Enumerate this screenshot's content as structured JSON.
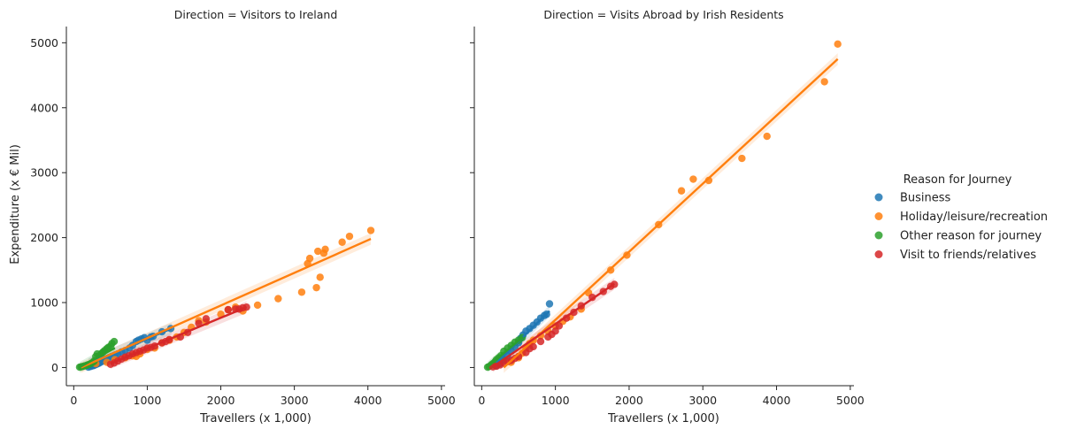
{
  "chart_data": {
    "type": "scatter",
    "ylabel": "Expenditure (x € Mil)",
    "legend": {
      "title": "Reason for Journey",
      "placement": "right",
      "entries": [
        {
          "name": "Business",
          "color": "#1f77b4"
        },
        {
          "name": "Holiday/leisure/recreation",
          "color": "#ff7f0e"
        },
        {
          "name": "Other reason for journey",
          "color": "#2ca02c"
        },
        {
          "name": "Visit to friends/relatives",
          "color": "#d62728"
        }
      ]
    },
    "xlim": [
      -100,
      5050
    ],
    "ylim": [
      -280,
      5250
    ],
    "xticks": [
      0,
      1000,
      2000,
      3000,
      4000,
      5000
    ],
    "yticks": [
      0,
      1000,
      2000,
      3000,
      4000,
      5000
    ],
    "grid": false,
    "panels": [
      {
        "title": "Direction = Visitors to Ireland",
        "xlabel": "Travellers (x 1,000)",
        "series": [
          {
            "name": "Business",
            "color": "#1f77b4",
            "x": [
              200,
              230,
              250,
              270,
              290,
              310,
              330,
              350,
              380,
              400,
              420,
              450,
              480,
              520,
              560,
              600,
              650,
              700,
              760,
              800,
              850,
              880,
              920,
              960,
              1000,
              1050,
              1080,
              1200,
              1320
            ],
            "y": [
              5,
              15,
              25,
              30,
              40,
              50,
              60,
              70,
              90,
              100,
              110,
              130,
              150,
              170,
              190,
              210,
              240,
              260,
              300,
              340,
              400,
              420,
              440,
              460,
              420,
              470,
              480,
              550,
              600
            ],
            "fit": [
              [
                200,
                60
              ],
              [
                1330,
                600
              ]
            ]
          },
          {
            "name": "Holiday/leisure/recreation",
            "color": "#ff7f0e",
            "x": [
              300,
              450,
              560,
              700,
              800,
              850,
              900,
              1000,
              1100,
              1200,
              1300,
              1400,
              1500,
              1600,
              1700,
              1800,
              2000,
              2100,
              2200,
              2300,
              2500,
              2780,
              3100,
              3180,
              3210,
              3300,
              3320,
              3350,
              3400,
              3420,
              3650,
              3750,
              4040
            ],
            "y": [
              60,
              80,
              120,
              150,
              180,
              170,
              210,
              280,
              300,
              380,
              420,
              470,
              540,
              620,
              720,
              700,
              820,
              890,
              930,
              870,
              960,
              1060,
              1160,
              1600,
              1680,
              1230,
              1790,
              1390,
              1760,
              1820,
              1930,
              2020,
              2110
            ],
            "fit": [
              [
                100,
                0
              ],
              [
                4040,
                1980
              ]
            ]
          },
          {
            "name": "Other reason for journey",
            "color": "#2ca02c",
            "x": [
              80,
              100,
              120,
              150,
              180,
              200,
              230,
              260,
              280,
              300,
              320,
              350,
              380,
              400,
              420,
              450,
              470,
              500,
              520,
              550
            ],
            "y": [
              5,
              10,
              15,
              25,
              35,
              45,
              60,
              80,
              100,
              170,
              210,
              180,
              220,
              240,
              260,
              290,
              310,
              330,
              370,
              400
            ],
            "fit": [
              [
                80,
                5
              ],
              [
                560,
                300
              ]
            ]
          },
          {
            "name": "Visit to friends/relatives",
            "color": "#d62728",
            "x": [
              500,
              550,
              600,
              650,
              700,
              750,
              800,
              850,
              900,
              950,
              1000,
              1050,
              1100,
              1200,
              1250,
              1300,
              1450,
              1550,
              1700,
              1800,
              2100,
              2200,
              2250,
              2300,
              2350
            ],
            "y": [
              50,
              70,
              100,
              130,
              160,
              180,
              210,
              230,
              250,
              270,
              300,
              310,
              330,
              380,
              400,
              430,
              470,
              540,
              680,
              750,
              890,
              900,
              900,
              920,
              930
            ],
            "fit": [
              [
                500,
                60
              ],
              [
                2350,
                930
              ]
            ]
          }
        ]
      },
      {
        "title": "Direction = Visits Abroad by Irish Residents",
        "xlabel": "Travellers (x 1,000)",
        "series": [
          {
            "name": "Business",
            "color": "#1f77b4",
            "x": [
              200,
              250,
              300,
              350,
              400,
              450,
              500,
              530,
              560,
              600,
              650,
              700,
              750,
              800,
              850,
              880,
              920
            ],
            "y": [
              30,
              60,
              120,
              180,
              250,
              320,
              380,
              450,
              500,
              560,
              600,
              650,
              700,
              760,
              800,
              820,
              980
            ],
            "fit": [
              [
                200,
                70
              ],
              [
                920,
                870
              ]
            ]
          },
          {
            "name": "Holiday/leisure/recreation",
            "color": "#ff7f0e",
            "x": [
              400,
              500,
              550,
              600,
              650,
              700,
              800,
              900,
              1000,
              1100,
              1200,
              1350,
              1450,
              1750,
              1970,
              2400,
              2710,
              2870,
              3080,
              3530,
              3870,
              4650,
              4830
            ],
            "y": [
              80,
              150,
              220,
              300,
              370,
              420,
              490,
              560,
              640,
              710,
              780,
              900,
              1150,
              1500,
              1730,
              2200,
              2720,
              2900,
              2880,
              3220,
              3560,
              4400,
              4980
            ],
            "fit": [
              [
                300,
                0
              ],
              [
                4830,
                4750
              ]
            ]
          },
          {
            "name": "Other reason for journey",
            "color": "#2ca02c",
            "x": [
              80,
              100,
              130,
              150,
              180,
              200,
              230,
              260,
              300,
              350,
              400,
              450,
              500,
              550
            ],
            "y": [
              5,
              15,
              40,
              60,
              90,
              120,
              150,
              180,
              250,
              300,
              340,
              390,
              420,
              460
            ],
            "fit": [
              [
                80,
                10
              ],
              [
                560,
                470
              ]
            ]
          },
          {
            "name": "Visit to friends/relatives",
            "color": "#d62728",
            "x": [
              150,
              200,
              250,
              300,
              350,
              400,
              450,
              500,
              600,
              650,
              700,
              800,
              900,
              950,
              1000,
              1050,
              1150,
              1250,
              1350,
              1500,
              1650,
              1750,
              1800
            ],
            "y": [
              10,
              20,
              40,
              70,
              90,
              110,
              140,
              170,
              230,
              290,
              320,
              400,
              470,
              510,
              560,
              640,
              760,
              850,
              950,
              1080,
              1170,
              1250,
              1280
            ],
            "fit": [
              [
                150,
                10
              ],
              [
                1800,
                1290
              ]
            ]
          }
        ]
      }
    ]
  }
}
